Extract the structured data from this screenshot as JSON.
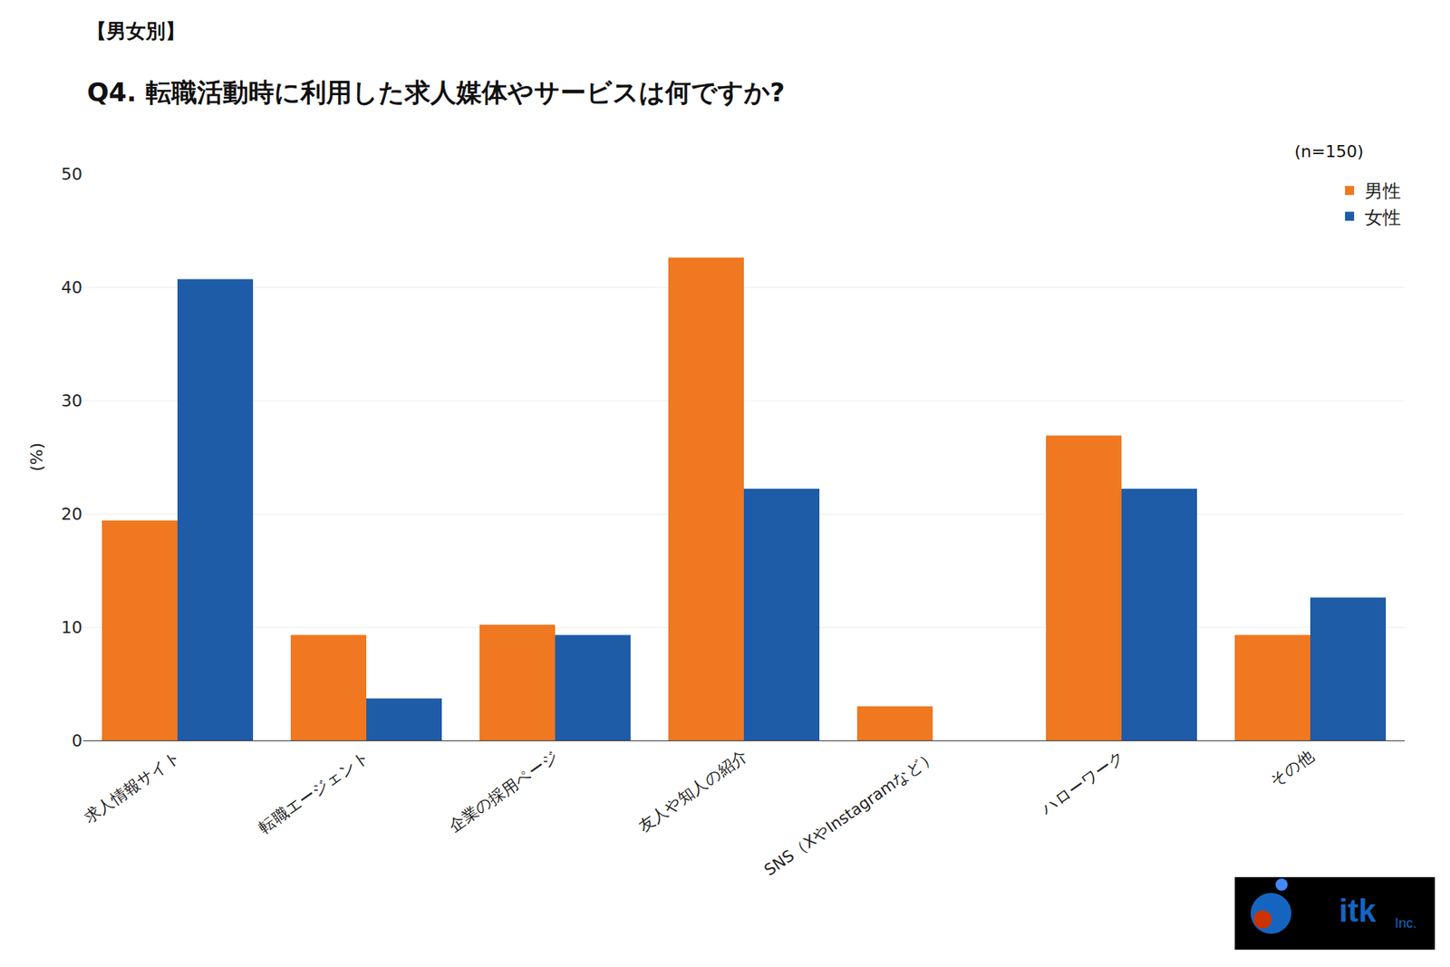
{
  "chart_data": {
    "type": "bar",
    "title": "【男女別】",
    "subtitle": "Q4. 転職活動時に利用した求人媒体やサービスは何ですか?",
    "annotations": [
      "(n=150)",
      "itk",
      "Inc."
    ],
    "ylabel": "(%)",
    "categories": [
      "求人情報サイト",
      "転職エージェント",
      "企業の採用ページ",
      "友人や知人の紹介",
      "SNS（XやInstagramなど）",
      "ハローワーク",
      "その他"
    ],
    "series": [
      {
        "name": "男性",
        "color": "#F07820",
        "values": [
          19.4,
          9.3,
          10.2,
          42.6,
          3.0,
          26.9,
          9.3
        ]
      },
      {
        "name": "女性",
        "color": "#1F5CA8",
        "values": [
          40.7,
          3.7,
          9.3,
          22.2,
          0.0,
          22.2,
          12.6
        ]
      }
    ],
    "ylim": [
      0,
      50
    ],
    "yticks": [
      0,
      10,
      20,
      30,
      40,
      50
    ],
    "grid": true,
    "legend": "upper right"
  }
}
